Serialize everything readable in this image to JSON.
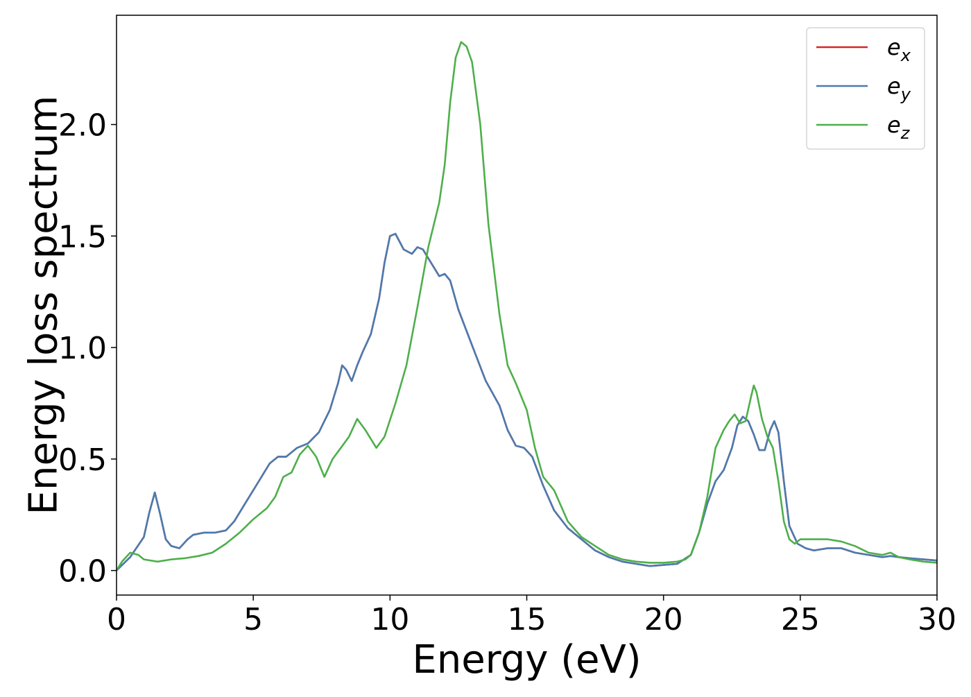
{
  "chart_data": {
    "type": "line",
    "title": "",
    "xlabel": "Energy (eV)",
    "ylabel": "Energy loss spectrum",
    "xlim": [
      0,
      30
    ],
    "ylim": [
      -0.11,
      2.49
    ],
    "xticks": [
      0,
      5,
      10,
      15,
      20,
      25,
      30
    ],
    "xtick_labels": [
      "0",
      "5",
      "10",
      "15",
      "20",
      "25",
      "30"
    ],
    "yticks": [
      0.0,
      0.5,
      1.0,
      1.5,
      2.0
    ],
    "ytick_labels": [
      "0.0",
      "0.5",
      "1.0",
      "1.5",
      "2.0"
    ],
    "grid": false,
    "legend_position": "top-right",
    "series": [
      {
        "name": "e_x",
        "legend_base": "e",
        "legend_sub": "x",
        "color": "#d62728",
        "x": [
          0,
          0.5,
          1.0,
          1.2,
          1.4,
          1.6,
          1.8,
          2.0,
          2.3,
          2.6,
          2.8,
          3.2,
          3.6,
          4.0,
          4.3,
          4.7,
          5.2,
          5.6,
          5.9,
          6.2,
          6.6,
          7.0,
          7.4,
          7.8,
          8.1,
          8.25,
          8.4,
          8.6,
          8.8,
          9.0,
          9.3,
          9.6,
          9.8,
          10.0,
          10.2,
          10.5,
          10.8,
          11.0,
          11.2,
          11.5,
          11.8,
          12.0,
          12.2,
          12.5,
          13.0,
          13.5,
          14.0,
          14.3,
          14.6,
          14.9,
          15.2,
          15.6,
          16.0,
          16.5,
          17.0,
          17.5,
          18.0,
          18.5,
          19.0,
          19.5,
          20.0,
          20.5,
          21.0,
          21.3,
          21.6,
          21.9,
          22.2,
          22.5,
          22.7,
          22.9,
          23.1,
          23.3,
          23.5,
          23.7,
          23.9,
          24.05,
          24.2,
          24.4,
          24.6,
          24.9,
          25.2,
          25.5,
          26.0,
          26.5,
          27.0,
          27.5,
          28.0,
          28.3,
          28.6,
          29.0,
          29.5,
          30.0
        ],
        "y": [
          0.0,
          0.06,
          0.15,
          0.26,
          0.35,
          0.25,
          0.14,
          0.11,
          0.1,
          0.14,
          0.16,
          0.17,
          0.17,
          0.18,
          0.22,
          0.3,
          0.4,
          0.48,
          0.51,
          0.51,
          0.55,
          0.57,
          0.62,
          0.72,
          0.84,
          0.92,
          0.9,
          0.85,
          0.92,
          0.98,
          1.06,
          1.22,
          1.38,
          1.5,
          1.51,
          1.44,
          1.42,
          1.45,
          1.44,
          1.38,
          1.32,
          1.33,
          1.3,
          1.17,
          1.01,
          0.85,
          0.74,
          0.63,
          0.56,
          0.55,
          0.51,
          0.38,
          0.27,
          0.19,
          0.14,
          0.09,
          0.06,
          0.04,
          0.03,
          0.02,
          0.025,
          0.03,
          0.07,
          0.17,
          0.3,
          0.4,
          0.45,
          0.55,
          0.65,
          0.69,
          0.67,
          0.61,
          0.54,
          0.54,
          0.63,
          0.67,
          0.62,
          0.4,
          0.2,
          0.12,
          0.1,
          0.09,
          0.1,
          0.1,
          0.08,
          0.07,
          0.06,
          0.065,
          0.06,
          0.055,
          0.05,
          0.045
        ]
      },
      {
        "name": "e_y",
        "legend_base": "e",
        "legend_sub": "y",
        "color": "#4a7bb0",
        "x": [
          0,
          0.5,
          1.0,
          1.2,
          1.4,
          1.6,
          1.8,
          2.0,
          2.3,
          2.6,
          2.8,
          3.2,
          3.6,
          4.0,
          4.3,
          4.7,
          5.2,
          5.6,
          5.9,
          6.2,
          6.6,
          7.0,
          7.4,
          7.8,
          8.1,
          8.25,
          8.4,
          8.6,
          8.8,
          9.0,
          9.3,
          9.6,
          9.8,
          10.0,
          10.2,
          10.5,
          10.8,
          11.0,
          11.2,
          11.5,
          11.8,
          12.0,
          12.2,
          12.5,
          13.0,
          13.5,
          14.0,
          14.3,
          14.6,
          14.9,
          15.2,
          15.6,
          16.0,
          16.5,
          17.0,
          17.5,
          18.0,
          18.5,
          19.0,
          19.5,
          20.0,
          20.5,
          21.0,
          21.3,
          21.6,
          21.9,
          22.2,
          22.5,
          22.7,
          22.9,
          23.1,
          23.3,
          23.5,
          23.7,
          23.9,
          24.05,
          24.2,
          24.4,
          24.6,
          24.9,
          25.2,
          25.5,
          26.0,
          26.5,
          27.0,
          27.5,
          28.0,
          28.3,
          28.6,
          29.0,
          29.5,
          30.0
        ],
        "y": [
          0.0,
          0.06,
          0.15,
          0.26,
          0.35,
          0.25,
          0.14,
          0.11,
          0.1,
          0.14,
          0.16,
          0.17,
          0.17,
          0.18,
          0.22,
          0.3,
          0.4,
          0.48,
          0.51,
          0.51,
          0.55,
          0.57,
          0.62,
          0.72,
          0.84,
          0.92,
          0.9,
          0.85,
          0.92,
          0.98,
          1.06,
          1.22,
          1.38,
          1.5,
          1.51,
          1.44,
          1.42,
          1.45,
          1.44,
          1.38,
          1.32,
          1.33,
          1.3,
          1.17,
          1.01,
          0.85,
          0.74,
          0.63,
          0.56,
          0.55,
          0.51,
          0.38,
          0.27,
          0.19,
          0.14,
          0.09,
          0.06,
          0.04,
          0.03,
          0.02,
          0.025,
          0.03,
          0.07,
          0.17,
          0.3,
          0.4,
          0.45,
          0.55,
          0.65,
          0.69,
          0.67,
          0.61,
          0.54,
          0.54,
          0.63,
          0.67,
          0.62,
          0.4,
          0.2,
          0.12,
          0.1,
          0.09,
          0.1,
          0.1,
          0.08,
          0.07,
          0.06,
          0.065,
          0.06,
          0.055,
          0.05,
          0.045
        ]
      },
      {
        "name": "e_z",
        "legend_base": "e",
        "legend_sub": "z",
        "color": "#4daf4a",
        "x": [
          0,
          0.2,
          0.5,
          0.8,
          1.0,
          1.5,
          2.0,
          2.5,
          3.0,
          3.5,
          4.0,
          4.5,
          5.0,
          5.5,
          5.8,
          6.1,
          6.4,
          6.7,
          7.0,
          7.3,
          7.6,
          7.9,
          8.2,
          8.5,
          8.8,
          9.1,
          9.5,
          9.8,
          10.2,
          10.6,
          11.0,
          11.4,
          11.8,
          12.0,
          12.2,
          12.4,
          12.6,
          12.8,
          13.0,
          13.3,
          13.6,
          14.0,
          14.3,
          14.6,
          15.0,
          15.3,
          15.6,
          16.0,
          16.5,
          17.0,
          17.5,
          18.0,
          18.5,
          19.0,
          19.5,
          20.0,
          20.5,
          20.8,
          21.0,
          21.3,
          21.6,
          21.9,
          22.2,
          22.4,
          22.6,
          22.8,
          23.0,
          23.2,
          23.3,
          23.4,
          23.6,
          23.8,
          24.0,
          24.2,
          24.4,
          24.6,
          24.8,
          25.0,
          25.3,
          25.6,
          26.0,
          26.5,
          27.0,
          27.5,
          28.0,
          28.3,
          28.6,
          29.0,
          29.5,
          30.0
        ],
        "y": [
          0.0,
          0.04,
          0.08,
          0.07,
          0.05,
          0.04,
          0.05,
          0.055,
          0.065,
          0.08,
          0.12,
          0.17,
          0.23,
          0.28,
          0.33,
          0.42,
          0.44,
          0.52,
          0.56,
          0.51,
          0.42,
          0.5,
          0.55,
          0.6,
          0.68,
          0.63,
          0.55,
          0.6,
          0.75,
          0.92,
          1.18,
          1.45,
          1.65,
          1.82,
          2.1,
          2.3,
          2.37,
          2.35,
          2.28,
          2.0,
          1.55,
          1.15,
          0.92,
          0.84,
          0.72,
          0.55,
          0.42,
          0.36,
          0.22,
          0.15,
          0.11,
          0.07,
          0.05,
          0.04,
          0.035,
          0.035,
          0.04,
          0.05,
          0.07,
          0.17,
          0.33,
          0.55,
          0.63,
          0.67,
          0.7,
          0.66,
          0.67,
          0.78,
          0.83,
          0.8,
          0.68,
          0.6,
          0.55,
          0.4,
          0.22,
          0.14,
          0.12,
          0.14,
          0.14,
          0.14,
          0.14,
          0.13,
          0.11,
          0.08,
          0.07,
          0.08,
          0.06,
          0.05,
          0.04,
          0.035
        ]
      }
    ]
  }
}
